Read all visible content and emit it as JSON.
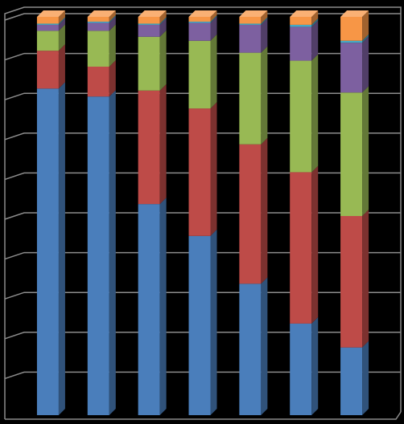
{
  "chart_data": {
    "type": "bar",
    "stacked": true,
    "percent_stacked": true,
    "three_d": true,
    "grid": true,
    "legend": "none",
    "ylim": [
      0,
      100
    ],
    "categories": [
      "",
      "",
      "",
      "",
      "",
      "",
      ""
    ],
    "series": [
      {
        "color": "#4a7ebb",
        "values": [
          82,
          80,
          53,
          45,
          33,
          23,
          17
        ]
      },
      {
        "color": "#be4b48",
        "values": [
          9.5,
          7.5,
          28.5,
          32,
          35,
          38,
          33
        ]
      },
      {
        "color": "#98b954",
        "values": [
          5,
          9,
          13.5,
          17,
          23,
          28,
          31
        ]
      },
      {
        "color": "#7d60a0",
        "values": [
          1.5,
          2,
          3,
          4.5,
          7,
          8.5,
          12.5
        ]
      },
      {
        "color": "#46aac5",
        "values": [
          0.3,
          0.3,
          0.3,
          0.3,
          0.3,
          0.5,
          0.5
        ]
      },
      {
        "color": "#f79646",
        "values": [
          1.7,
          1.2,
          1.7,
          1.2,
          1.7,
          2,
          6
        ]
      }
    ]
  }
}
